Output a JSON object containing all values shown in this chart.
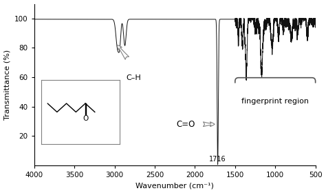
{
  "title": "",
  "xlabel": "Wavenumber (cm⁻¹)",
  "ylabel": "Transmittance (%)",
  "xlim": [
    4000,
    500
  ],
  "ylim": [
    0,
    110
  ],
  "yticks": [
    20,
    40,
    60,
    80,
    100
  ],
  "xticks": [
    4000,
    3500,
    3000,
    2500,
    2000,
    1500,
    1000,
    500
  ],
  "background_color": "#ffffff",
  "line_color": "#111111",
  "ch_label": "C–H",
  "co_label": "C=O",
  "fp_label": "fingerprint region",
  "peak_1716": "1716",
  "fingerprint_start": 1500,
  "fingerprint_end": 500
}
